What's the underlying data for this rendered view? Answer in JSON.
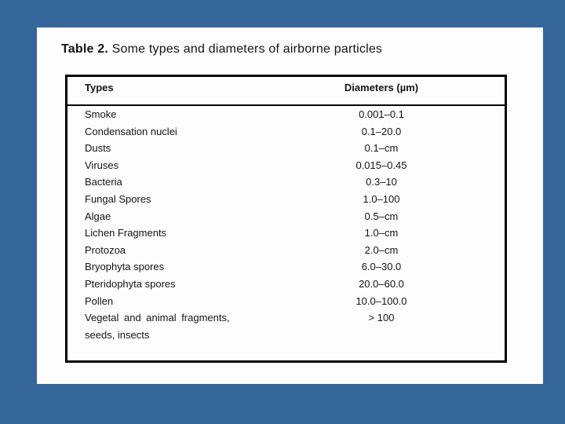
{
  "slide": {
    "title_prefix": "Table 2.",
    "title_rest": " Some types and diameters of airborne particles"
  },
  "table": {
    "headers": {
      "types": "Types",
      "diameters": "Diameters (µm)"
    },
    "rows": [
      {
        "type": "Smoke",
        "diameter": "0.001–0.1"
      },
      {
        "type": "Condensation nuclei",
        "diameter": "0.1–20.0"
      },
      {
        "type": "Dusts",
        "diameter": "0.1–cm"
      },
      {
        "type": "Viruses",
        "diameter": "0.015–0.45"
      },
      {
        "type": "Bacteria",
        "diameter": "0.3–10"
      },
      {
        "type": "Fungal Spores",
        "diameter": "1.0–100"
      },
      {
        "type": "Algae",
        "diameter": "0.5–cm"
      },
      {
        "type": "Lichen Fragments",
        "diameter": "1.0–cm"
      },
      {
        "type": "Protozoa",
        "diameter": "2.0–cm"
      },
      {
        "type": "Bryophyta spores",
        "diameter": "6.0–30.0"
      },
      {
        "type": "Pteridophyta spores",
        "diameter": "20.0–60.0"
      },
      {
        "type": "Pollen",
        "diameter": "10.0–100.0"
      },
      {
        "type": "Vegetal and animal fragments,",
        "type_line2": "seeds, insects",
        "diameter": "> 100"
      }
    ]
  },
  "colors": {
    "background": "#36679a",
    "card": "#fdfdfd",
    "border": "#000000",
    "text": "#141414"
  }
}
